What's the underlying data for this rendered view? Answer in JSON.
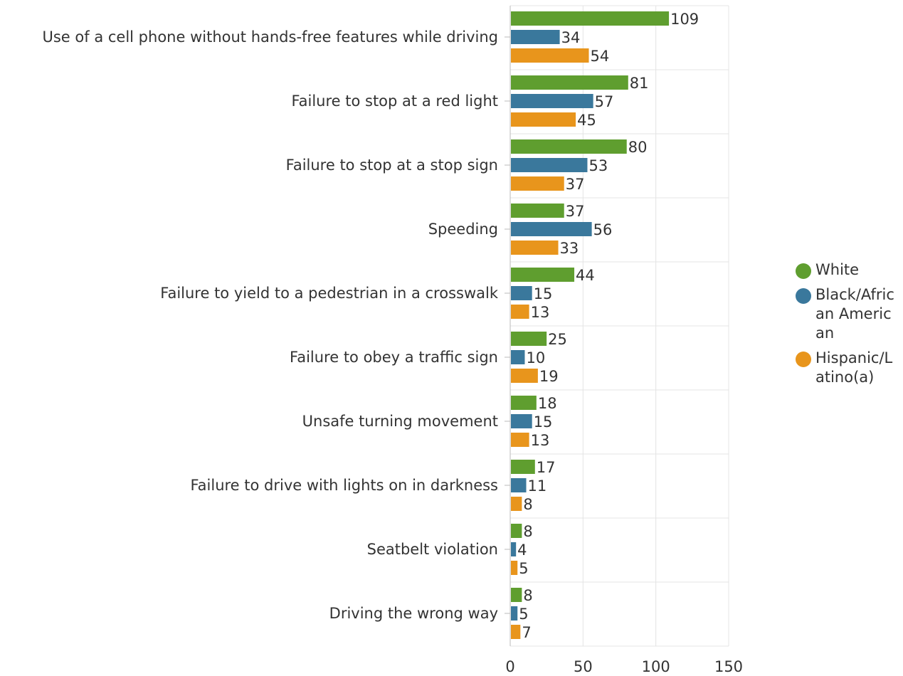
{
  "chart_data": {
    "type": "bar",
    "orientation": "horizontal",
    "categories": [
      "Use of a cell phone without hands-free features while driving",
      "Failure to stop at a red light",
      "Failure to stop at a stop sign",
      "Speeding",
      "Failure to yield to a pedestrian in a crosswalk",
      "Failure to obey a traffic sign",
      "Unsafe turning movement",
      "Failure to drive with lights on in darkness",
      "Seatbelt violation",
      "Driving the wrong way"
    ],
    "series": [
      {
        "name": "White",
        "color": "#5f9e2f",
        "values": [
          109,
          81,
          80,
          37,
          44,
          25,
          18,
          17,
          8,
          8
        ]
      },
      {
        "name": "Black/African American",
        "color": "#3a789c",
        "values": [
          34,
          57,
          53,
          56,
          15,
          10,
          15,
          11,
          4,
          5
        ]
      },
      {
        "name": "Hispanic/Latino(a)",
        "color": "#e8951c",
        "values": [
          54,
          45,
          37,
          33,
          13,
          19,
          13,
          8,
          5,
          7
        ]
      }
    ],
    "xlim": [
      0,
      150
    ],
    "xticks": [
      0,
      50,
      100,
      150
    ],
    "grid": true,
    "legend_position": "right",
    "title": "",
    "xlabel": "",
    "ylabel": ""
  }
}
